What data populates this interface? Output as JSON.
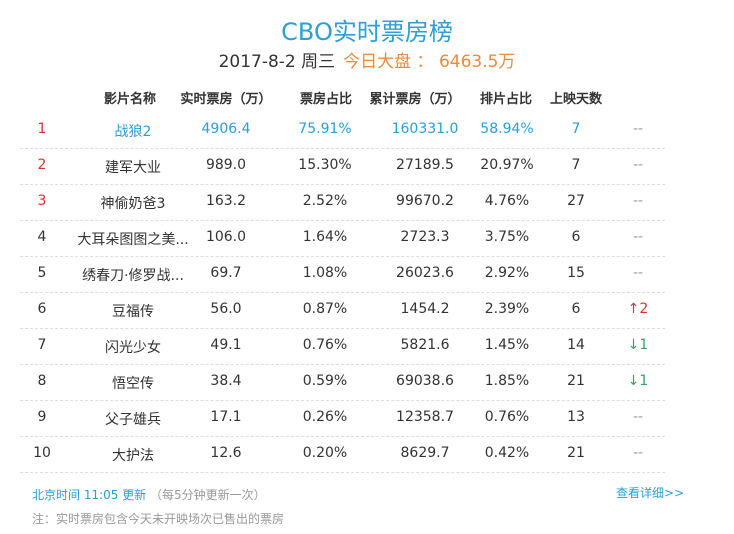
{
  "header": {
    "title": "CBO实时票房榜",
    "date": "2017-8-2 周三",
    "total": "今日大盘 ： 6463.5万"
  },
  "table": {
    "columns": [
      "影片名称",
      "实时票房（万）",
      "票房占比",
      "累计票房（万）",
      "排片占比",
      "上映天数"
    ],
    "rows": [
      [
        "1",
        "战狼2",
        "4906.4",
        "75.91%",
        "160331.0",
        "58.94%",
        "7",
        "--"
      ],
      [
        "2",
        "建军大业",
        "989.0",
        "15.30%",
        "27189.5",
        "20.97%",
        "7",
        "--"
      ],
      [
        "3",
        "神偷奶爸3",
        "163.2",
        "2.52%",
        "99670.2",
        "4.76%",
        "27",
        "--"
      ],
      [
        "4",
        "大耳朵图图之美...",
        "106.0",
        "1.64%",
        "2723.3",
        "3.75%",
        "6",
        "--"
      ],
      [
        "5",
        "绣春刀·修罗战...",
        "69.7",
        "1.08%",
        "26023.6",
        "2.92%",
        "15",
        "--"
      ],
      [
        "6",
        "豆福传",
        "56.0",
        "0.87%",
        "1454.2",
        "2.39%",
        "6",
        "↑2"
      ],
      [
        "7",
        "闪光少女",
        "49.1",
        "0.76%",
        "5821.6",
        "1.45%",
        "14",
        "↓1"
      ],
      [
        "8",
        "悟空传",
        "38.4",
        "0.59%",
        "69038.6",
        "1.85%",
        "21",
        "↓1"
      ],
      [
        "9",
        "父子雄兵",
        "17.1",
        "0.26%",
        "12358.7",
        "0.76%",
        "13",
        "--"
      ],
      [
        "10",
        "大护法",
        "12.6",
        "0.20%",
        "8629.7",
        "0.42%",
        "21",
        "--"
      ]
    ]
  },
  "footer": {
    "update_time": "北京时间 11:05 更新",
    "update_note": "（每5分钟更新一次）",
    "details_link": "查看详细>>",
    "note": "注：实时票房包含今天未开映场次已售出的票房"
  }
}
